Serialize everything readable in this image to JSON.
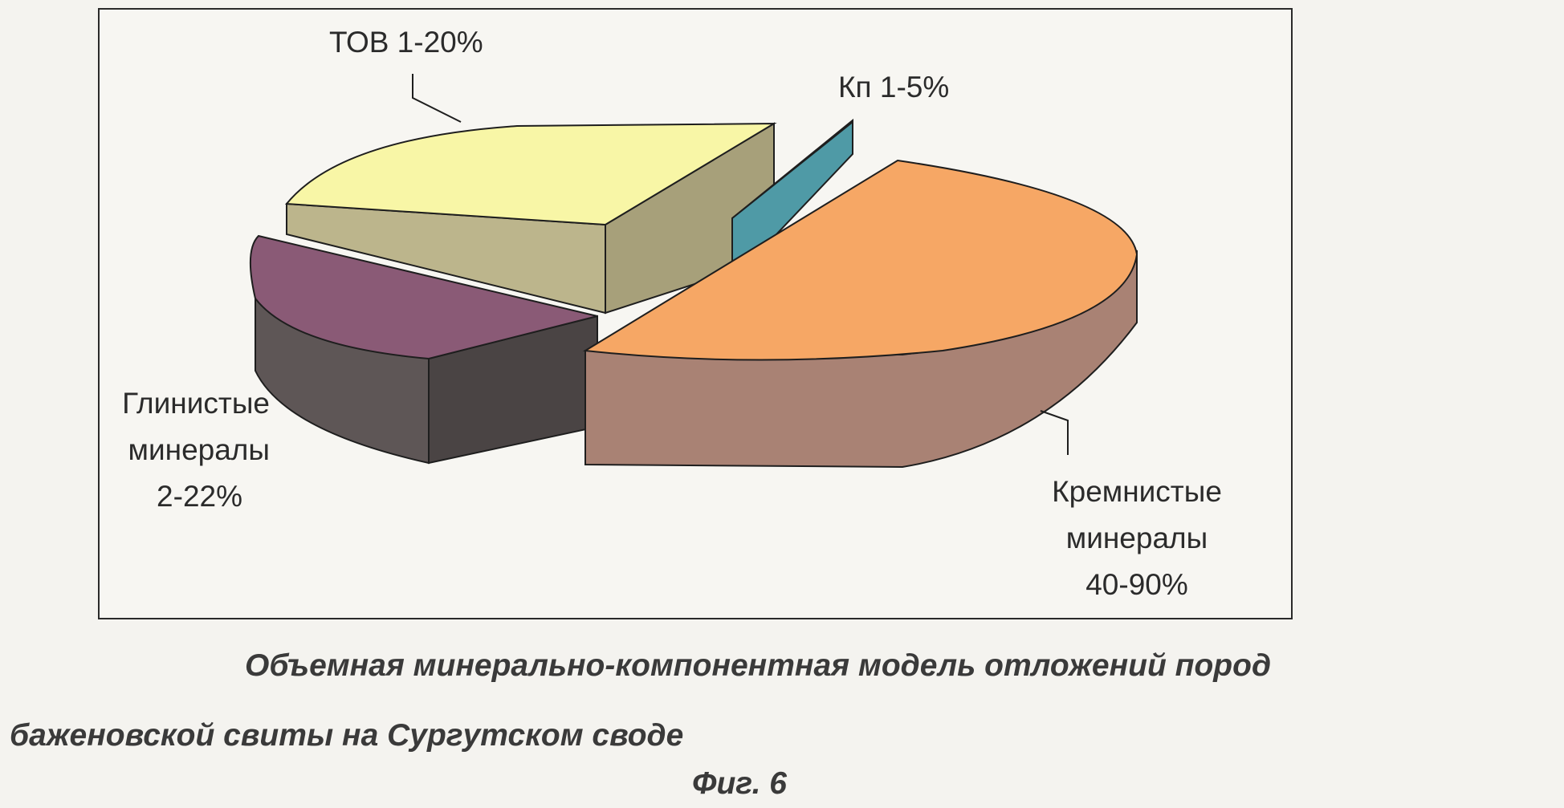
{
  "chart_data": {
    "type": "pie",
    "slices": [
      {
        "label_lines": [
          "Кремнистые",
          "минералы",
          "40-90%"
        ],
        "value": 50,
        "color": "#f6a765",
        "side_color": "#a98274"
      },
      {
        "label_lines": [
          "Глинистые",
          "минералы",
          "2-22%"
        ],
        "value": 15,
        "color": "#8a5a76",
        "side_color": "#5e5656"
      },
      {
        "label_lines": [
          "ТОВ 1-20%"
        ],
        "value": 33,
        "color": "#f8f6a6",
        "side_color": "#bcb58c"
      },
      {
        "label_lines": [
          "Кп 1-5%"
        ],
        "value": 2,
        "color": "#4f9aa6",
        "side_color": "#3c7580"
      }
    ]
  },
  "caption": {
    "line1": "Объемная минерально-компонентная модель отложений пород",
    "line2": "баженовской свиты на Сургутском своде",
    "figure": "Фиг. 6"
  }
}
